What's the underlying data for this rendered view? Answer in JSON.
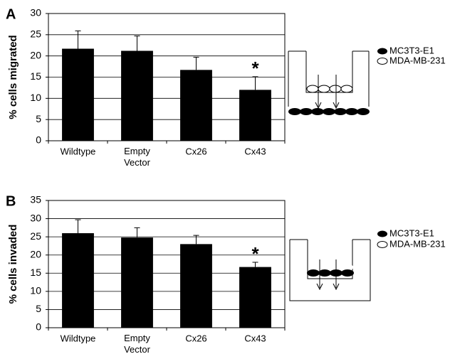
{
  "chart_data": [
    {
      "type": "bar",
      "panel": "A",
      "ylabel": "% cells migrated",
      "categories": [
        "Wildtype",
        "Empty Vector",
        "Cx26",
        "Cx43"
      ],
      "values": [
        21.7,
        21.2,
        16.7,
        12.0
      ],
      "errors": [
        4.2,
        3.5,
        3.0,
        3.1
      ],
      "color": "#000000",
      "ylim": [
        0,
        30
      ],
      "yticks": [
        0,
        5,
        10,
        15,
        20,
        25,
        30
      ],
      "grid": true,
      "annotation": {
        "text": "*",
        "category": 3
      },
      "legend": [
        "MC3T3-E1",
        "MDA-MB-231"
      ]
    },
    {
      "type": "bar",
      "panel": "B",
      "ylabel": "% cells invaded",
      "categories": [
        "Wildtype",
        "Empty Vector",
        "Cx26",
        "Cx43"
      ],
      "values": [
        26.0,
        24.8,
        23.0,
        16.7
      ],
      "errors": [
        3.7,
        2.7,
        2.4,
        1.3
      ],
      "color": "#000000",
      "ylim": [
        0,
        35
      ],
      "yticks": [
        0,
        5,
        10,
        15,
        20,
        25,
        30,
        35
      ],
      "grid": true,
      "annotation": {
        "text": "*",
        "category": 3
      },
      "legend": [
        "MC3T3-E1",
        "MDA-MB-231"
      ]
    }
  ]
}
